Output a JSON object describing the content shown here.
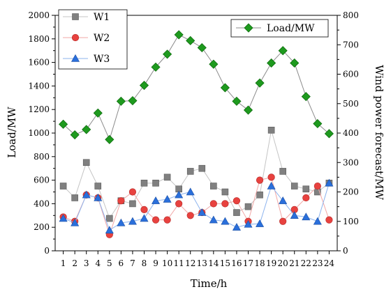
{
  "chart_data": {
    "type": "line",
    "xlabel": "Time/h",
    "ylabel_left": "Load/MW",
    "ylabel_right": "Wind power forecast/MW",
    "x": [
      1,
      2,
      3,
      4,
      5,
      6,
      7,
      8,
      9,
      10,
      11,
      12,
      13,
      14,
      15,
      16,
      17,
      18,
      19,
      20,
      21,
      22,
      23,
      24
    ],
    "x_tick_labels": [
      "1",
      "2",
      "3",
      "4",
      "5",
      "6",
      "7",
      "8",
      "9",
      "10",
      "11",
      "12",
      "13",
      "14",
      "15",
      "16",
      "17",
      "18",
      "19",
      "20",
      "21",
      "22",
      "23",
      "24"
    ],
    "ylim_left": [
      0,
      2000
    ],
    "y_ticks_left": [
      0,
      200,
      400,
      600,
      800,
      1000,
      1200,
      1400,
      1600,
      1800,
      2000
    ],
    "y_tick_labels_left": [
      "0",
      "200",
      "400",
      "600",
      "800",
      "1000",
      "1200",
      "1400",
      "1600",
      "1800",
      "2000"
    ],
    "ylim_right": [
      0,
      800
    ],
    "y_ticks_right": [
      0,
      100,
      200,
      300,
      400,
      500,
      600,
      700,
      800
    ],
    "y_tick_labels_right": [
      "0",
      "100",
      "200",
      "300",
      "400",
      "500",
      "600",
      "700",
      "800"
    ],
    "grid": false,
    "legend_left_placement": "top-left",
    "legend_right_placement": "top-right",
    "series": [
      {
        "name": "Load/MW",
        "axis": "left",
        "marker": "diamond",
        "color": "#1e9a1e",
        "line_color": "#8c8c8c",
        "values": [
          1075,
          985,
          1030,
          1170,
          945,
          1270,
          1275,
          1405,
          1560,
          1670,
          1835,
          1785,
          1725,
          1585,
          1385,
          1270,
          1195,
          1425,
          1595,
          1700,
          1595,
          1310,
          1080,
          995
        ]
      },
      {
        "name": "W1",
        "axis": "right",
        "marker": "square",
        "color": "#808080",
        "line_color": "#c4c4c4",
        "values": [
          220,
          180,
          300,
          220,
          110,
          170,
          160,
          230,
          230,
          250,
          210,
          270,
          280,
          220,
          200,
          130,
          150,
          190,
          410,
          270,
          220,
          210,
          200,
          230
        ]
      },
      {
        "name": "W2",
        "axis": "right",
        "marker": "circle",
        "color": "#e8423f",
        "line_color": "#f2a7a6",
        "values": [
          115,
          100,
          190,
          180,
          55,
          170,
          200,
          140,
          105,
          105,
          160,
          120,
          130,
          160,
          160,
          170,
          100,
          240,
          250,
          100,
          140,
          180,
          220,
          105
        ]
      },
      {
        "name": "W3",
        "axis": "right",
        "marker": "triangle",
        "color": "#2a6fdb",
        "line_color": "#8cb3ee",
        "values": [
          110,
          95,
          190,
          180,
          70,
          95,
          100,
          110,
          170,
          175,
          190,
          200,
          130,
          105,
          100,
          80,
          90,
          92,
          220,
          170,
          120,
          115,
          100,
          230
        ]
      }
    ]
  }
}
